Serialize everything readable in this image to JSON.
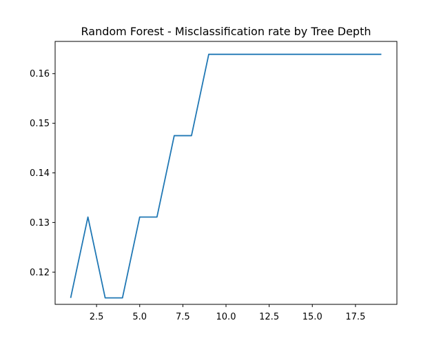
{
  "chart_data": {
    "type": "line",
    "title": "Random Forest - Misclassification rate by Tree Depth",
    "xlabel": "",
    "ylabel": "",
    "xlim": [
      0.1,
      19.9
    ],
    "ylim": [
      0.1135,
      0.1665
    ],
    "xticks": [
      2.5,
      5.0,
      7.5,
      10.0,
      12.5,
      15.0,
      17.5
    ],
    "xtick_labels": [
      "2.5",
      "5.0",
      "7.5",
      "10.0",
      "12.5",
      "15.0",
      "17.5"
    ],
    "yticks": [
      0.12,
      0.13,
      0.14,
      0.15,
      0.16
    ],
    "ytick_labels": [
      "0.12",
      "0.13",
      "0.14",
      "0.15",
      "0.16"
    ],
    "grid": false,
    "series": [
      {
        "color": "#1f77b4",
        "x": [
          1,
          2,
          3,
          4,
          5,
          6,
          7,
          8,
          9,
          10,
          11,
          12,
          13,
          14,
          15,
          16,
          17,
          18,
          19
        ],
        "y": [
          0.1148,
          0.1311,
          0.1148,
          0.1148,
          0.1311,
          0.1311,
          0.1475,
          0.1475,
          0.1639,
          0.1639,
          0.1639,
          0.1639,
          0.1639,
          0.1639,
          0.1639,
          0.1639,
          0.1639,
          0.1639,
          0.1639
        ]
      }
    ]
  }
}
